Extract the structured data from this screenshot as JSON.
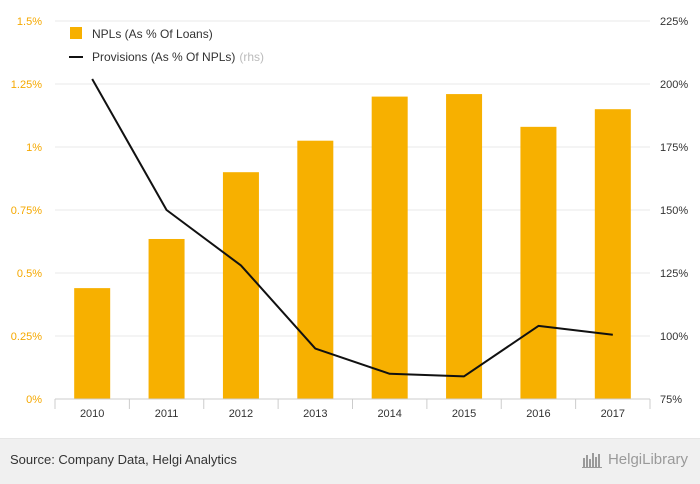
{
  "chart_data": {
    "type": "bar",
    "categories": [
      "2010",
      "2011",
      "2012",
      "2013",
      "2014",
      "2015",
      "2016",
      "2017"
    ],
    "series": [
      {
        "name": "NPLs (As % Of Loans)",
        "type": "bar",
        "axis": "left",
        "color": "#f7b000",
        "values": [
          0.44,
          0.635,
          0.9,
          1.025,
          1.2,
          1.21,
          1.08,
          1.15
        ]
      },
      {
        "name": "Provisions (As % Of NPLs)",
        "name_suffix": "(rhs)",
        "type": "line",
        "axis": "right",
        "color": "#111111",
        "values": [
          202,
          150,
          128,
          95,
          85,
          84,
          104,
          100.5
        ]
      }
    ],
    "y_left": {
      "min": 0,
      "max": 1.5,
      "ticks": [
        0,
        0.25,
        0.5,
        0.75,
        1,
        1.25,
        1.5
      ],
      "tick_labels": [
        "0%",
        "0.25%",
        "0.5%",
        "0.75%",
        "1%",
        "1.25%",
        "1.5%"
      ]
    },
    "y_right": {
      "min": 75,
      "max": 225,
      "ticks": [
        75,
        100,
        125,
        150,
        175,
        200,
        225
      ],
      "tick_labels": [
        "75%",
        "100%",
        "125%",
        "150%",
        "175%",
        "200%",
        "225%"
      ]
    },
    "grid": true,
    "legend_position": "top-left"
  },
  "footer": {
    "source": "Source: Company Data, Helgi Analytics",
    "brand": "HelgiLibrary"
  }
}
